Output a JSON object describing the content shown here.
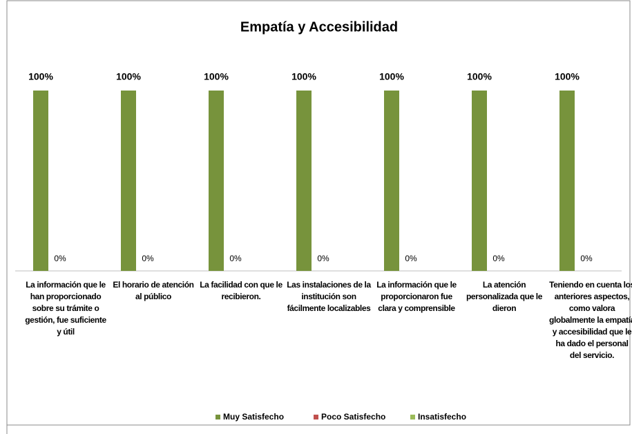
{
  "chart_data": {
    "type": "bar",
    "title": "Empatía y Accesibilidad",
    "categories": [
      "La información que le han proporcionado sobre su trámite  o gestión, fue suficiente y útil",
      "El horario de atención al público",
      "La facilidad con que le recibieron.",
      "Las instalaciones de la institución son fácilmente localizables",
      "La información que le proporcionaron fue clara y comprensible",
      "La atención personalizada que le dieron",
      "Teniendo en cuenta los anteriores aspectos, como valora globalmente la empatía y accesibilidad que le ha dado el personal del servicio."
    ],
    "series": [
      {
        "name": "Muy Satisfecho",
        "color": "#77933c",
        "values": [
          100,
          100,
          100,
          100,
          100,
          100,
          100
        ],
        "value_labels": [
          "100%",
          "100%",
          "100%",
          "100%",
          "100%",
          "100%",
          "100%"
        ]
      },
      {
        "name": "Poco Satisfecho",
        "color": "#c0504d",
        "values": [
          0,
          0,
          0,
          0,
          0,
          0,
          0
        ]
      },
      {
        "name": "Insatisfecho",
        "color": "#9bbb59",
        "values": [
          0,
          0,
          0,
          0,
          0,
          0,
          0
        ],
        "value_labels": [
          "0%",
          "0%",
          "0%",
          "0%",
          "0%",
          "0%",
          "0%"
        ]
      }
    ],
    "ylim": [
      0,
      100
    ],
    "legend": "bottom"
  }
}
